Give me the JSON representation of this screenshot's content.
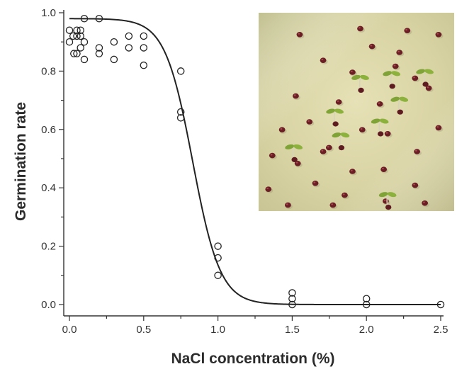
{
  "chart_data": {
    "type": "scatter",
    "xlabel": "NaCl concentration (%)",
    "ylabel": "Germination rate",
    "xlim": [
      -0.04,
      2.55
    ],
    "ylim": [
      -0.02,
      1.02
    ],
    "xticks": [
      0.0,
      0.5,
      1.0,
      1.5,
      2.0,
      2.5
    ],
    "xtick_labels": [
      "0.0",
      "0.5",
      "1.0",
      "1.5",
      "2.0",
      "2.5"
    ],
    "yticks": [
      0.0,
      0.2,
      0.4,
      0.6,
      0.8,
      1.0
    ],
    "ytick_labels": [
      "0.0",
      "0.2",
      "0.4",
      "0.6",
      "0.8",
      "1.0"
    ],
    "grid": false,
    "points": [
      {
        "x": 0.0,
        "y": 0.94
      },
      {
        "x": 0.0,
        "y": 0.9
      },
      {
        "x": 0.025,
        "y": 0.92
      },
      {
        "x": 0.03,
        "y": 0.86
      },
      {
        "x": 0.05,
        "y": 0.94
      },
      {
        "x": 0.05,
        "y": 0.92
      },
      {
        "x": 0.05,
        "y": 0.86
      },
      {
        "x": 0.075,
        "y": 0.94
      },
      {
        "x": 0.075,
        "y": 0.92
      },
      {
        "x": 0.075,
        "y": 0.88
      },
      {
        "x": 0.1,
        "y": 0.98
      },
      {
        "x": 0.1,
        "y": 0.9
      },
      {
        "x": 0.1,
        "y": 0.84
      },
      {
        "x": 0.2,
        "y": 0.98
      },
      {
        "x": 0.2,
        "y": 0.88
      },
      {
        "x": 0.2,
        "y": 0.86
      },
      {
        "x": 0.3,
        "y": 0.9
      },
      {
        "x": 0.3,
        "y": 0.84
      },
      {
        "x": 0.4,
        "y": 0.92
      },
      {
        "x": 0.4,
        "y": 0.88
      },
      {
        "x": 0.5,
        "y": 0.92
      },
      {
        "x": 0.5,
        "y": 0.88
      },
      {
        "x": 0.5,
        "y": 0.82
      },
      {
        "x": 0.75,
        "y": 0.8
      },
      {
        "x": 0.75,
        "y": 0.66
      },
      {
        "x": 0.75,
        "y": 0.64
      },
      {
        "x": 1.0,
        "y": 0.2
      },
      {
        "x": 1.0,
        "y": 0.16
      },
      {
        "x": 1.0,
        "y": 0.1
      },
      {
        "x": 1.5,
        "y": 0.04
      },
      {
        "x": 1.5,
        "y": 0.02
      },
      {
        "x": 1.5,
        "y": 0.0
      },
      {
        "x": 2.0,
        "y": 0.02
      },
      {
        "x": 2.0,
        "y": 0.0
      },
      {
        "x": 2.5,
        "y": 0.0
      }
    ],
    "fit_curve": {
      "type": "sigmoid",
      "top": 0.98,
      "bottom": 0.0,
      "x50": 0.83,
      "slope": 0.093
    },
    "inset": {
      "description_icon": "seedling-photo",
      "seeds": [
        [
          0.21,
          0.11
        ],
        [
          0.52,
          0.08
        ],
        [
          0.76,
          0.09
        ],
        [
          0.92,
          0.11
        ],
        [
          0.58,
          0.17
        ],
        [
          0.72,
          0.2
        ],
        [
          0.33,
          0.24
        ],
        [
          0.48,
          0.3
        ],
        [
          0.8,
          0.33
        ],
        [
          0.87,
          0.38
        ],
        [
          0.19,
          0.42
        ],
        [
          0.41,
          0.45
        ],
        [
          0.62,
          0.46
        ],
        [
          0.26,
          0.55
        ],
        [
          0.12,
          0.59
        ],
        [
          0.53,
          0.59
        ],
        [
          0.66,
          0.61
        ],
        [
          0.92,
          0.58
        ],
        [
          0.36,
          0.68
        ],
        [
          0.81,
          0.7
        ],
        [
          0.07,
          0.72
        ],
        [
          0.2,
          0.76
        ],
        [
          0.48,
          0.8
        ],
        [
          0.64,
          0.79
        ],
        [
          0.05,
          0.89
        ],
        [
          0.29,
          0.86
        ],
        [
          0.8,
          0.87
        ],
        [
          0.44,
          0.92
        ],
        [
          0.65,
          0.95
        ],
        [
          0.85,
          0.96
        ],
        [
          0.15,
          0.97
        ],
        [
          0.38,
          0.97
        ],
        [
          0.7,
          0.27
        ],
        [
          0.33,
          0.7
        ]
      ],
      "sprouts": [
        [
          0.52,
          0.33
        ],
        [
          0.68,
          0.31
        ],
        [
          0.85,
          0.3
        ],
        [
          0.39,
          0.5
        ],
        [
          0.62,
          0.55
        ],
        [
          0.72,
          0.44
        ],
        [
          0.18,
          0.68
        ],
        [
          0.42,
          0.62
        ],
        [
          0.66,
          0.92
        ]
      ]
    }
  }
}
